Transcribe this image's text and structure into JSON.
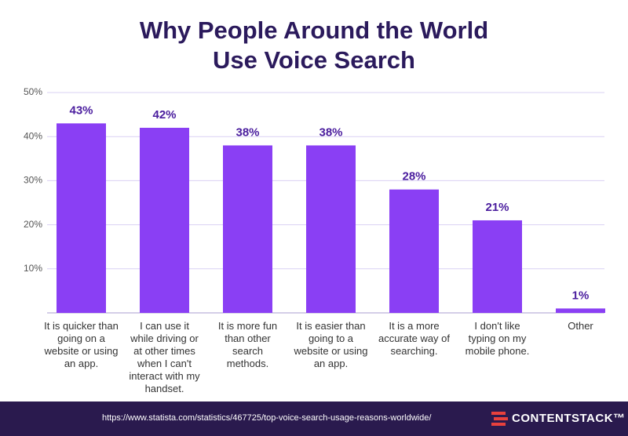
{
  "chart_data": {
    "type": "bar",
    "title": "Why People Around the World Use Voice Search",
    "categories": [
      "It is quicker than going on a website or using an app.",
      "I can use it while driving or at other times when I can't interact with my handset.",
      "It is more fun than other search methods.",
      "It is easier than going to a website or using an app.",
      "It is a more accurate way of searching.",
      "I don't like typing on my mobile phone.",
      "Other"
    ],
    "values": [
      43,
      42,
      38,
      38,
      28,
      21,
      1
    ],
    "value_labels": [
      "43%",
      "42%",
      "38%",
      "38%",
      "28%",
      "21%",
      "1%"
    ],
    "color": "#8a3ff4",
    "ylim": [
      0,
      50
    ],
    "yticks": [
      {
        "value": 10,
        "label": "10%"
      },
      {
        "value": 20,
        "label": "20%"
      },
      {
        "value": 30,
        "label": "30%"
      },
      {
        "value": 40,
        "label": "40%"
      },
      {
        "value": 50,
        "label": "50%"
      }
    ],
    "grid": true
  },
  "footer": {
    "source": "https://www.statista.com/statistics/467725/top-voice-search-usage-reasons-worldwide/",
    "brand": "CONTENTSTACK™"
  }
}
